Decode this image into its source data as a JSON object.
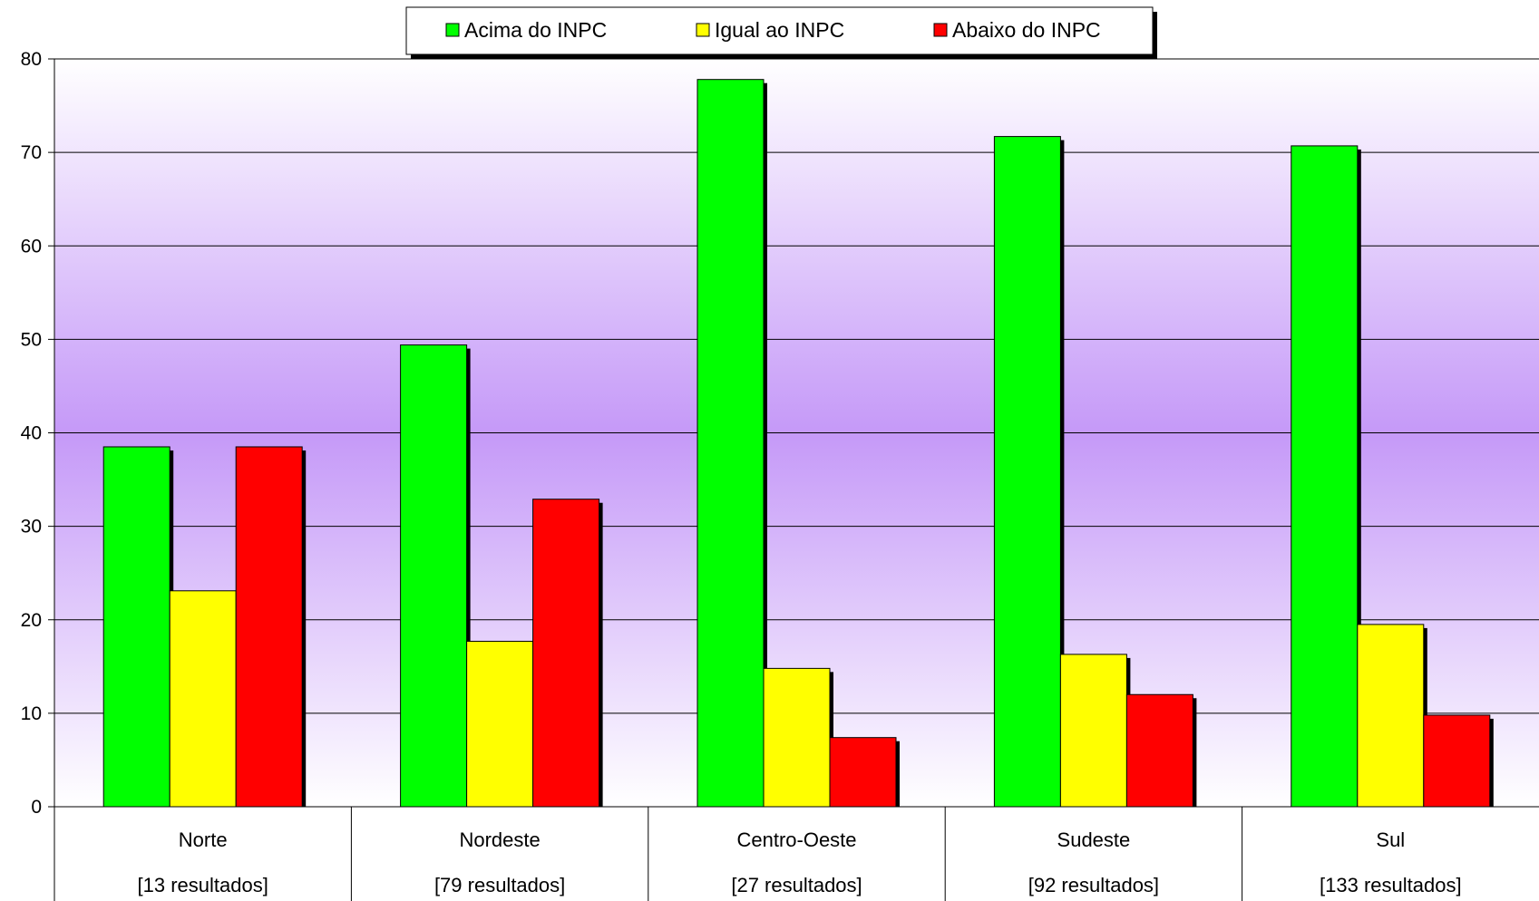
{
  "chart_data": {
    "type": "bar",
    "categories": [
      "Norte",
      "Nordeste",
      "Centro-Oeste",
      "Sudeste",
      "Sul"
    ],
    "category_sublabels": [
      "[13 resultados]",
      "[79 resultados]",
      "[27 resultados]",
      "[92 resultados]",
      "[133 resultados]"
    ],
    "series": [
      {
        "name": "Acima do INPC",
        "color": "#00ff00",
        "values": [
          38.5,
          49.4,
          77.8,
          71.7,
          70.7
        ]
      },
      {
        "name": "Igual ao INPC",
        "color": "#ffff00",
        "values": [
          23.1,
          17.7,
          14.8,
          16.3,
          19.5
        ]
      },
      {
        "name": "Abaixo do INPC",
        "color": "#ff0000",
        "values": [
          38.5,
          32.9,
          7.4,
          12.0,
          9.8
        ]
      }
    ],
    "title": "",
    "xlabel": "",
    "ylabel": "",
    "ylim": [
      0,
      80
    ],
    "yticks": [
      0,
      10,
      20,
      30,
      40,
      50,
      60,
      70,
      80
    ],
    "grid": true,
    "legend_position": "top-center",
    "background": "gradient white-lavender-white"
  }
}
